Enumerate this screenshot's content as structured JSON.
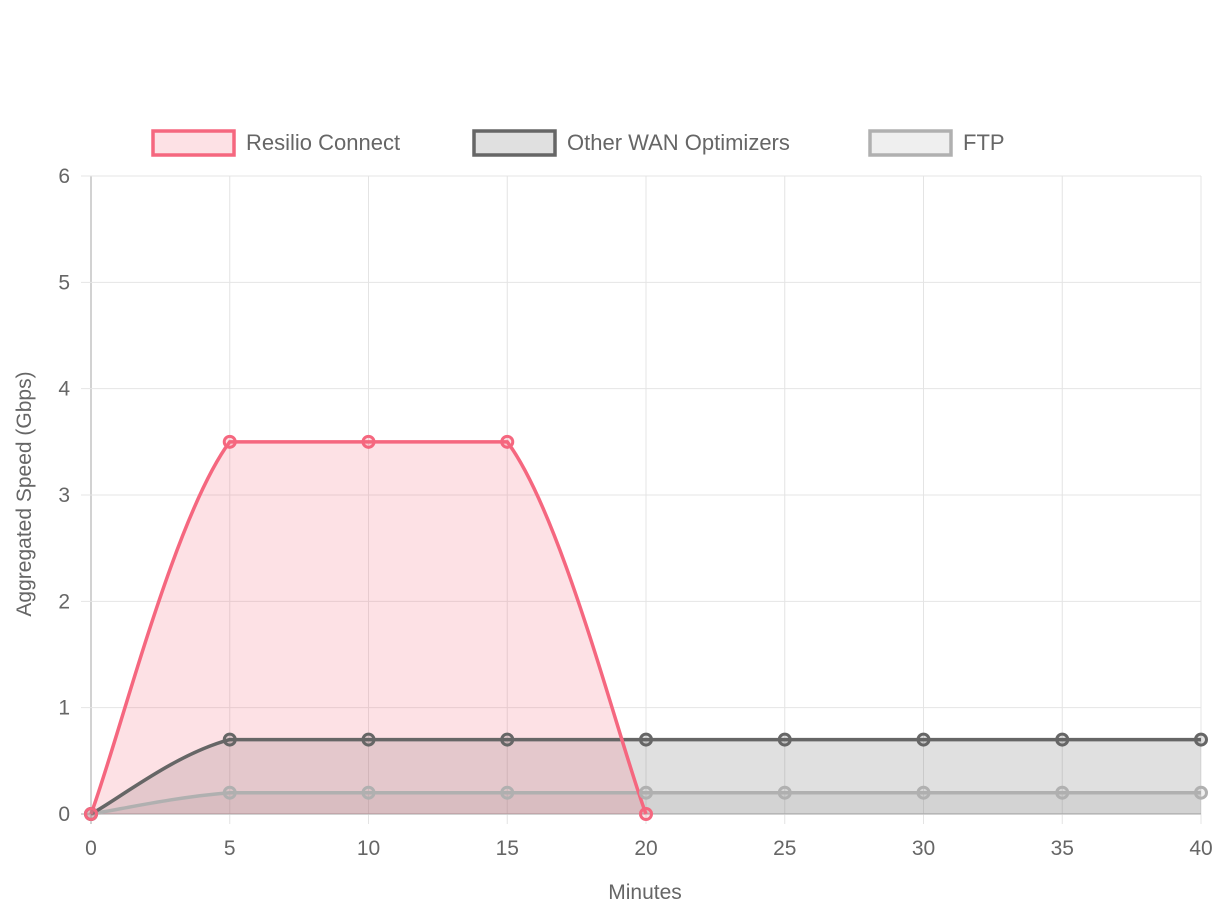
{
  "chart_data": {
    "type": "area",
    "title": "",
    "xlabel": "Minutes",
    "ylabel": "Aggregated Speed (Gbps)",
    "x": [
      0,
      5,
      10,
      15,
      20,
      25,
      30,
      35,
      40
    ],
    "xlim": [
      0,
      40
    ],
    "ylim": [
      0,
      6
    ],
    "x_ticks": [
      0,
      5,
      10,
      15,
      20,
      25,
      30,
      35,
      40
    ],
    "y_ticks": [
      0,
      1,
      2,
      3,
      4,
      5,
      6
    ],
    "grid": true,
    "legend_position": "top",
    "series": [
      {
        "name": "Resilio Connect",
        "x": [
          0,
          5,
          10,
          15,
          20
        ],
        "values": [
          0,
          3.5,
          3.5,
          3.5,
          0
        ],
        "line_color": "#f5677f",
        "fill_color": "rgba(245,103,127,0.2)"
      },
      {
        "name": "Other WAN Optimizers",
        "x": [
          0,
          5,
          10,
          15,
          20,
          25,
          30,
          35,
          40
        ],
        "values": [
          0,
          0.7,
          0.7,
          0.7,
          0.7,
          0.7,
          0.7,
          0.7,
          0.7
        ],
        "line_color": "#666666",
        "fill_color": "rgba(102,102,102,0.2)"
      },
      {
        "name": "FTP",
        "x": [
          0,
          5,
          10,
          15,
          20,
          25,
          30,
          35,
          40
        ],
        "values": [
          0,
          0.2,
          0.2,
          0.2,
          0.2,
          0.2,
          0.2,
          0.2,
          0.2
        ],
        "line_color": "#b0b0b0",
        "fill_color": "rgba(176,176,176,0.2)"
      }
    ]
  }
}
